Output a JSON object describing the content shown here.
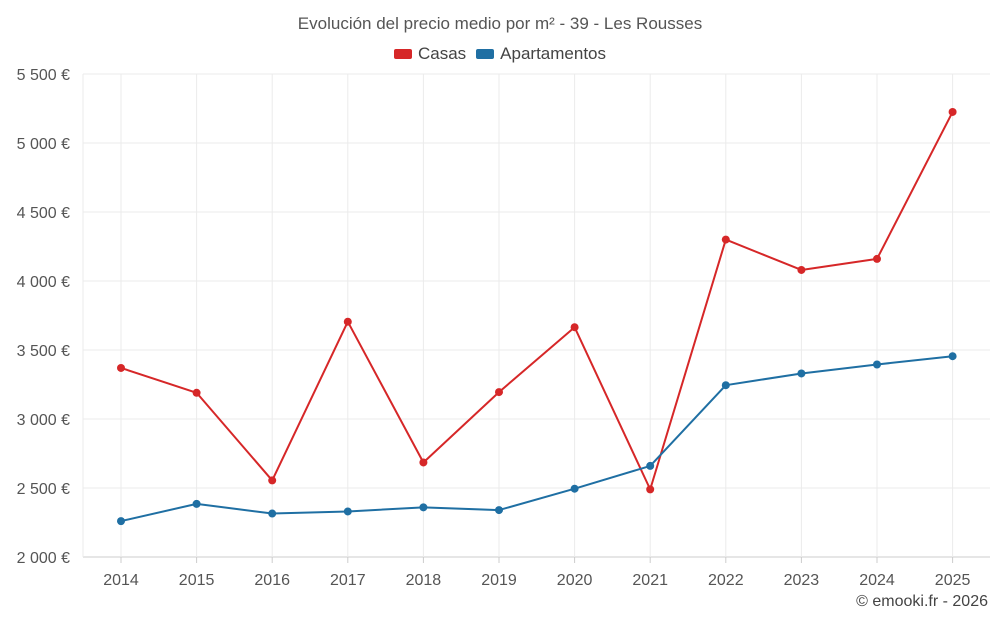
{
  "chart_data": {
    "type": "line",
    "title": "Evolución del precio medio por m² - 39 - Les Rousses",
    "categories": [
      "2014",
      "2015",
      "2016",
      "2017",
      "2018",
      "2019",
      "2020",
      "2021",
      "2022",
      "2023",
      "2024",
      "2025"
    ],
    "series": [
      {
        "name": "Casas",
        "color": "#d62728",
        "values": [
          3370,
          3190,
          2555,
          3705,
          2685,
          3195,
          3665,
          2490,
          4300,
          4080,
          4160,
          5225
        ]
      },
      {
        "name": "Apartamentos",
        "color": "#1f6fa3",
        "values": [
          2260,
          2385,
          2315,
          2330,
          2360,
          2340,
          2495,
          2660,
          3245,
          3330,
          3395,
          3455
        ]
      }
    ],
    "ylim": [
      2000,
      5500
    ],
    "yticks": [
      2000,
      2500,
      3000,
      3500,
      4000,
      4500,
      5000,
      5500
    ],
    "ytick_labels": [
      "2 000 €",
      "2 500 €",
      "3 000 €",
      "3 500 €",
      "4 000 €",
      "4 500 €",
      "5 000 €",
      "5 500 €"
    ],
    "grid": true,
    "legend_position": "top-center"
  },
  "credit": "© emooki.fr - 2026"
}
